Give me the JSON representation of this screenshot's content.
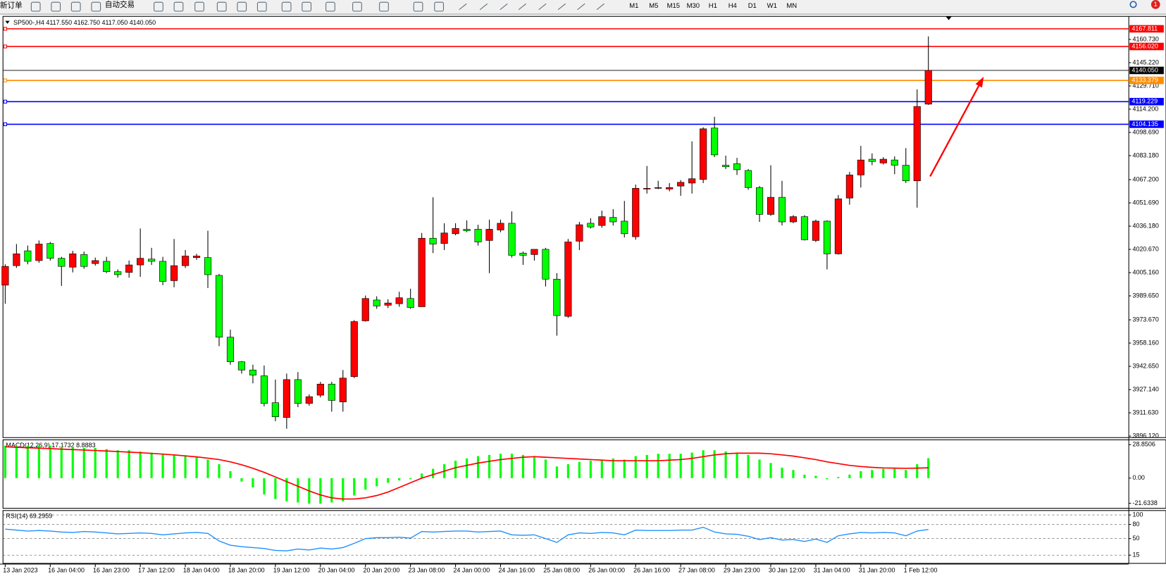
{
  "toolbar": {
    "new_order": "新订单",
    "auto_trading": "自动交易",
    "timeframes": [
      "M1",
      "M5",
      "M15",
      "M30",
      "H1",
      "H4",
      "D1",
      "W1",
      "MN"
    ],
    "badge": "1"
  },
  "chart_data": [
    {
      "type": "candlestick",
      "title": "SP500-,H4  4117.550 4162.750 4117.050 4140.050",
      "up_color": "#ff0000",
      "down_color": "#00ff00",
      "x": [
        "13 Jan 2023",
        null,
        null,
        null,
        "16 Jan 04:00",
        null,
        null,
        null,
        "16 Jan 23:00",
        null,
        null,
        null,
        "17 Jan 12:00",
        null,
        null,
        null,
        "18 Jan 04:00",
        null,
        null,
        null,
        "18 Jan 20:00",
        null,
        null,
        null,
        "19 Jan 12:00",
        null,
        null,
        null,
        "20 Jan 04:00",
        null,
        null,
        null,
        "20 Jan 20:00",
        null,
        null,
        null,
        "23 Jan 08:00",
        null,
        null,
        null,
        "24 Jan 00:00",
        null,
        null,
        null,
        "24 Jan 16:00",
        null,
        null,
        null,
        "25 Jan 08:00",
        null,
        null,
        null,
        "26 Jan 00:00",
        null,
        null,
        null,
        "26 Jan 16:00",
        null,
        null,
        null,
        "27 Jan 08:00",
        null,
        null,
        null,
        "29 Jan 23:00",
        null,
        null,
        null,
        "30 Jan 12:00",
        null,
        null,
        null,
        "31 Jan 04:00",
        null,
        null,
        null,
        "31 Jan 20:00",
        null,
        null,
        null,
        "1 Feb 12:00",
        null,
        null
      ],
      "open": [
        3996.8,
        4009.8,
        4019.7,
        4013.2,
        4024.6,
        4014.7,
        4008.8,
        4017.2,
        4011.2,
        4012.7,
        4005.8,
        4005.3,
        4010.3,
        4014.2,
        4012.7,
        3999.8,
        4009.8,
        4015.2,
        4015.2,
        4003.3,
        3962.1,
        3945.7,
        3940.2,
        3936.3,
        3918.4,
        3908.5,
        3933.8,
        3917.9,
        3923.4,
        3930.8,
        3918.9,
        3935.8,
        3973.0,
        3986.9,
        3983.4,
        3984.4,
        3987.9,
        3982.4,
        4028.1,
        4024.6,
        4031.1,
        4034.1,
        4034.1,
        4026.6,
        4033.6,
        4038.1,
        4018.2,
        4017.2,
        4020.7,
        4000.8,
        3976.0,
        4026.1,
        4038.1,
        4036.6,
        4042.0,
        4039.5,
        4029.1,
        4060.9,
        4061.4,
        4060.9,
        4062.9,
        4064.9,
        4067.3,
        4101.6,
        4076.8,
        4077.8,
        4073.3,
        4061.9,
        4044.0,
        4055.4,
        4039.0,
        4042.5,
        4026.6,
        4039.5,
        4017.7,
        4054.9,
        4070.3,
        4080.8,
        4078.3,
        4080.3,
        4076.8,
        4066.4,
        4117.55
      ],
      "high": [
        4010.7,
        4024.2,
        4023.2,
        4026.6,
        4025.6,
        4015.7,
        4019.7,
        4019.2,
        4015.2,
        4015.7,
        4007.3,
        4013.2,
        4034.6,
        4021.7,
        4015.7,
        4027.6,
        4020.2,
        4017.7,
        4033.1,
        4004.3,
        3967.1,
        3946.2,
        3943.7,
        3943.2,
        3933.8,
        3937.8,
        3938.8,
        3923.9,
        3932.3,
        3932.3,
        3940.2,
        3973.5,
        3989.9,
        3989.4,
        3987.4,
        3992.4,
        3994.4,
        4031.6,
        4055.4,
        4038.1,
        4038.1,
        4040.0,
        4037.1,
        4040.5,
        4040.5,
        4046.0,
        4019.2,
        4020.7,
        4021.7,
        4004.8,
        4027.6,
        4039.0,
        4041.5,
        4046.5,
        4047.5,
        4053.0,
        4063.9,
        4076.3,
        4066.4,
        4064.9,
        4066.9,
        4092.7,
        4102.1,
        4109.1,
        4083.2,
        4081.7,
        4074.3,
        4062.9,
        4076.8,
        4066.4,
        4043.5,
        4043.5,
        4040.5,
        4040.0,
        4056.9,
        4072.3,
        4089.7,
        4084.7,
        4082.2,
        4082.7,
        4088.2,
        4127.4,
        4162.75
      ],
      "low": [
        3984.4,
        4008.3,
        4010.7,
        4011.7,
        4013.2,
        3996.3,
        4005.3,
        4007.8,
        4009.8,
        4004.8,
        4001.8,
        4001.8,
        4002.3,
        4010.3,
        3996.8,
        3995.4,
        4008.3,
        4013.7,
        3994.9,
        3956.1,
        3943.7,
        3937.8,
        3931.3,
        3915.9,
        3906.0,
        3901.0,
        3915.4,
        3916.4,
        3921.9,
        3912.4,
        3912.4,
        3934.8,
        3972.5,
        3981.0,
        3981.5,
        3982.4,
        3981.0,
        3982.4,
        4018.2,
        4020.2,
        4030.1,
        4032.1,
        4023.2,
        4004.8,
        4032.1,
        4015.2,
        4010.3,
        4013.2,
        3995.9,
        3963.1,
        3975.0,
        4020.2,
        4034.6,
        4035.1,
        4036.6,
        4028.6,
        4027.1,
        4057.9,
        4060.9,
        4059.4,
        4056.4,
        4057.9,
        4064.9,
        4082.2,
        4074.3,
        4070.3,
        4060.4,
        4039.0,
        4043.0,
        4036.6,
        4038.1,
        4026.6,
        4025.6,
        4007.3,
        4017.2,
        4050.5,
        4061.9,
        4076.8,
        4077.3,
        4070.8,
        4064.9,
        4048.5,
        4117.05
      ],
      "close": [
        4009.3,
        4017.7,
        4012.7,
        4024.2,
        4014.7,
        4009.3,
        4017.7,
        4009.3,
        4013.2,
        4005.8,
        4003.8,
        4010.3,
        4014.7,
        4012.7,
        3999.3,
        4009.8,
        4016.2,
        4016.2,
        4003.8,
        3962.1,
        3945.7,
        3940.2,
        3936.8,
        3917.9,
        3909.0,
        3933.8,
        3917.9,
        3922.4,
        3930.8,
        3919.9,
        3934.8,
        3972.5,
        3987.9,
        3982.9,
        3984.9,
        3988.4,
        3981.9,
        4028.1,
        4024.2,
        4031.6,
        4034.6,
        4033.1,
        4025.6,
        4034.1,
        4038.1,
        4016.7,
        4016.7,
        4020.7,
        4000.8,
        3976.5,
        4025.6,
        4037.1,
        4035.6,
        4042.5,
        4039.0,
        4031.1,
        4061.4,
        4061.4,
        4061.9,
        4061.9,
        4065.4,
        4067.8,
        4101.1,
        4083.7,
        4075.8,
        4073.8,
        4061.9,
        4044.0,
        4055.4,
        4039.0,
        4042.5,
        4027.1,
        4039.5,
        4017.7,
        4054.4,
        4070.3,
        4080.3,
        4079.3,
        4080.8,
        4076.8,
        4066.4,
        4116.0,
        4140.05
      ],
      "ylim": [
        3895.1,
        4176.1
      ],
      "yticks": [
        {
          "value": 4160.73,
          "label": "4160.730"
        },
        {
          "value": 4145.22,
          "label": "4145.220"
        },
        {
          "value": 4129.71,
          "label": "4129.710"
        },
        {
          "value": 4114.2,
          "label": "4114.200"
        },
        {
          "value": 4098.69,
          "label": "4098.690"
        },
        {
          "value": 4083.18,
          "label": "4083.180"
        },
        {
          "value": 4067.2,
          "label": "4067.200"
        },
        {
          "value": 4051.69,
          "label": "4051.690"
        },
        {
          "value": 4036.18,
          "label": "4036.180"
        },
        {
          "value": 4020.67,
          "label": "4020.670"
        },
        {
          "value": 4005.16,
          "label": "4005.160"
        },
        {
          "value": 3989.65,
          "label": "3989.650"
        },
        {
          "value": 3973.67,
          "label": "3973.670"
        },
        {
          "value": 3958.16,
          "label": "3958.160"
        },
        {
          "value": 3942.65,
          "label": "3942.650"
        },
        {
          "value": 3927.14,
          "label": "3927.140"
        },
        {
          "value": 3911.63,
          "label": "3911.630"
        },
        {
          "value": 3896.12,
          "label": "3896.120"
        }
      ],
      "grid": false,
      "levels": [
        {
          "value": 4167.811,
          "label": "4167.811",
          "color": "#ff0000"
        },
        {
          "value": 4156.02,
          "label": "4156.020",
          "color": "#ff0000"
        },
        {
          "value": 4140.05,
          "label": "4140.050",
          "color": "#000000"
        },
        {
          "value": 4133.379,
          "label": "4133.379",
          "color": "#ff8c00"
        },
        {
          "value": 4119.229,
          "label": "4119.229",
          "color": "#0000ff"
        },
        {
          "value": 4104.135,
          "label": "4104.135",
          "color": "#0000ff"
        }
      ]
    },
    {
      "type": "macd",
      "title": "MACD(12,26,9) 17.1732 8.8883",
      "histogram": {
        "color": "#00ff00",
        "values": [
          28,
          28,
          28,
          28,
          28,
          27,
          27,
          26,
          26,
          25,
          24,
          24,
          23,
          22,
          21,
          20,
          19,
          18,
          16,
          12,
          6,
          -3,
          -8,
          -14,
          -18,
          -20,
          -21,
          -22,
          -22,
          -21,
          -20,
          -15,
          -10,
          -7,
          -4,
          -2,
          -1,
          4,
          8,
          12,
          15,
          17,
          19,
          20,
          21,
          21,
          20,
          19,
          16,
          10,
          12,
          14,
          15,
          16,
          17,
          16,
          19,
          20,
          21,
          21,
          21,
          22,
          24,
          24,
          23,
          22,
          20,
          16,
          13,
          9,
          7,
          3,
          2,
          -1,
          1,
          3,
          6,
          7,
          8,
          8,
          7,
          12,
          17.1732
        ]
      },
      "signal": {
        "color": "#ff0000",
        "values": [
          27,
          26.6,
          26.2,
          25.8,
          25.4,
          25,
          24.6,
          24.2,
          23.8,
          23.4,
          22.9,
          22.4,
          21.9,
          21.3,
          20.7,
          20,
          19.2,
          18.3,
          17.2,
          16,
          14,
          11.5,
          8.5,
          5,
          1,
          -3,
          -7,
          -11,
          -14.5,
          -17,
          -18,
          -18,
          -17,
          -15,
          -12,
          -8,
          -4,
          0,
          3,
          6,
          9,
          11,
          13,
          14.5,
          16,
          17,
          18,
          18.5,
          18,
          17.5,
          17,
          16.5,
          16,
          15.5,
          15,
          15,
          15,
          15,
          15,
          15.5,
          16,
          17,
          18.5,
          20,
          21,
          21.5,
          21.5,
          21.5,
          21,
          20,
          19,
          17.5,
          16,
          14,
          12.5,
          11,
          10,
          9.3,
          8.8,
          8.6,
          8.5,
          8.6,
          8.8883
        ]
      },
      "ylim": [
        -26,
        33
      ],
      "yticks": [
        28.8506,
        {
          "value": 0,
          "label": "0.00"
        },
        -21.6338
      ],
      "grid": false
    },
    {
      "type": "line",
      "title": "RSI(14) 69.2959",
      "color": "#1e90ff",
      "values": [
        70,
        68,
        66,
        67,
        66,
        64,
        63,
        65,
        64,
        62,
        60,
        61,
        62,
        61,
        58,
        60,
        62,
        63,
        61,
        45,
        36,
        33,
        31,
        29,
        25,
        24,
        28,
        26,
        30,
        28,
        31,
        40,
        50,
        52,
        52,
        53,
        51,
        65,
        64,
        65,
        66,
        66,
        64,
        65,
        66,
        58,
        57,
        58,
        50,
        42,
        58,
        62,
        61,
        63,
        62,
        58,
        68,
        67,
        67,
        67,
        68,
        68,
        74,
        64,
        60,
        59,
        55,
        48,
        52,
        47,
        48,
        44,
        49,
        42,
        56,
        60,
        63,
        62,
        63,
        62,
        56,
        66,
        69.2959
      ],
      "ylim": [
        -2.4,
        109.4
      ],
      "yticks": [
        100,
        80,
        50,
        15
      ],
      "grid": true
    }
  ]
}
